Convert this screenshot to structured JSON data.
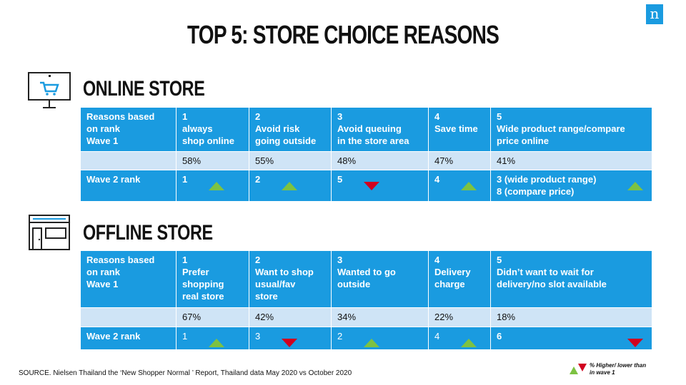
{
  "title": "TOP 5: STORE CHOICE REASONS",
  "logo": "n",
  "online": {
    "heading": "ONLINE STORE",
    "icon": "monitor-cart-icon",
    "header_row": [
      "Reasons based\non rank\nWave 1",
      "1\nalways\nshop online",
      "2\nAvoid risk\ngoing outside",
      "3\nAvoid queuing\nin the store area",
      "4\nSave time",
      "5\nWide product range/compare\nprice online"
    ],
    "pct_row": [
      "",
      "58%",
      "55%",
      "48%",
      "47%",
      "41%"
    ],
    "wave2_row": [
      "Wave 2 rank",
      "1",
      "2",
      "5",
      "4",
      "3 (wide product range)\n8 (compare price)"
    ],
    "wave2_trend": [
      "",
      "up",
      "up",
      "down",
      "up",
      "up"
    ]
  },
  "offline": {
    "heading": "OFFLINE STORE",
    "icon": "storefront-icon",
    "header_row": [
      "Reasons based\non rank\nWave 1",
      "1\nPrefer\nshopping\nreal store",
      "2\nWant to shop\nusual/fav\nstore",
      "3\nWanted to go\noutside",
      "4\nDelivery\ncharge",
      "5\nDidn’t want to wait for\ndelivery/no slot available"
    ],
    "pct_row": [
      "",
      "67%",
      "42%",
      "34%",
      "22%",
      "18%"
    ],
    "wave2_row": [
      "Wave 2 rank",
      "1",
      "3",
      "2",
      "4",
      "6"
    ],
    "wave2_trend": [
      "",
      "up",
      "down",
      "up",
      "up",
      "down"
    ]
  },
  "source": "SOURCE.    Nielsen Thailand  the ‘New Shopper Normal ’ Report, Thailand data May 2020 vs October 2020",
  "legend": "% Higher/ lower than\nin wave 1",
  "colors": {
    "blue": "#1a9be0",
    "light_blue": "#cfe4f6",
    "up": "#7dc242",
    "down": "#d1001f"
  }
}
